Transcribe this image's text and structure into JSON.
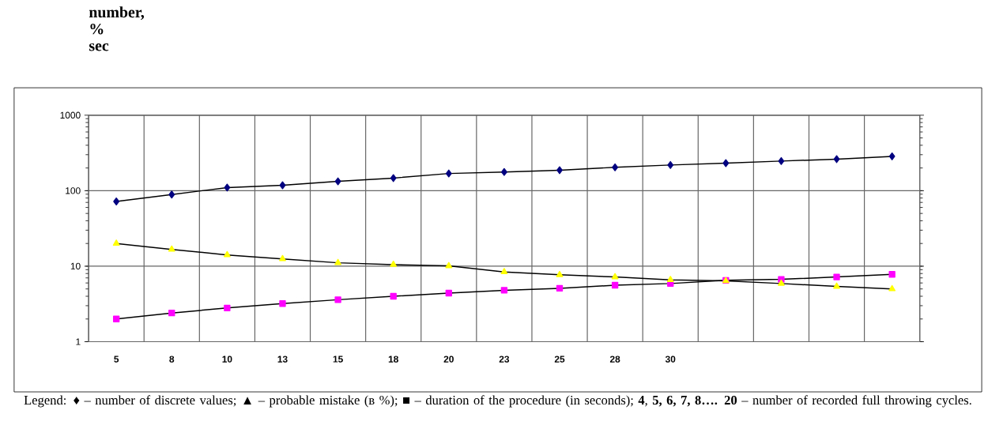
{
  "chart_data": {
    "type": "line",
    "ylabel": "number, % sec",
    "categories": [
      "5",
      "8",
      "10",
      "13",
      "15",
      "18",
      "20",
      "23",
      "25",
      "28",
      "30",
      null,
      null,
      null,
      null
    ],
    "series": [
      {
        "color": "#000080",
        "marker": "diamond",
        "values": [
          72,
          89,
          110,
          118,
          133,
          147,
          169,
          177,
          187,
          204,
          219,
          232,
          247,
          262,
          285
        ]
      },
      {
        "color": "#ffff00",
        "marker": "triangle",
        "values": [
          20,
          16.7,
          14.1,
          12.5,
          11.1,
          10.5,
          10.1,
          8.4,
          7.7,
          7.2,
          6.6,
          6.4,
          5.9,
          5.4,
          5.0
        ]
      },
      {
        "color": "#ff00ff",
        "marker": "square",
        "values": [
          2.0,
          2.4,
          2.8,
          3.2,
          3.6,
          4.0,
          4.4,
          4.8,
          5.1,
          5.6,
          5.9,
          6.5,
          6.7,
          7.2,
          7.8
        ]
      }
    ],
    "ylim": [
      1,
      1000
    ],
    "yticks": [
      1,
      10,
      100,
      1000
    ],
    "log": "y",
    "grid": true,
    "annotations": [
      "Legend:  ♦ – number of discrete values;   ▲ – probable mistake (в %);   ■ – duration of the procedure (in seconds);   **4**, **5, 6, 7, 8…. 20** – number of recorded full throwing cycles."
    ]
  }
}
